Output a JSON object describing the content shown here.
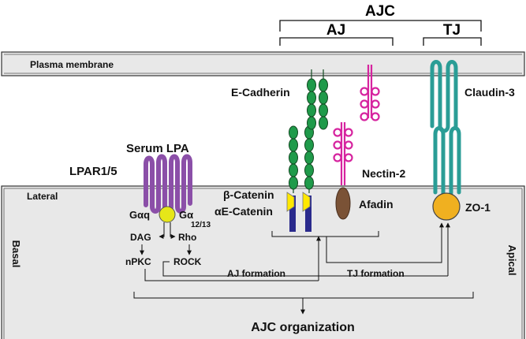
{
  "headers": {
    "ajc": "AJC",
    "aj": "AJ",
    "tj": "TJ"
  },
  "compartments": {
    "plasma_membrane": "Plasma membrane",
    "lateral": "Lateral",
    "basal": "Basal",
    "apical": "Apical"
  },
  "molecules": {
    "serum_lpa": "Serum LPA",
    "lpar": "LPAR1/5",
    "g_alpha_q": "Gαq",
    "g_alpha_12": "Gα",
    "g_alpha_12_sub": "12/13",
    "e_cadherin": "E-Cadherin",
    "nectin": "Nectin-2",
    "claudin": "Claudin-3",
    "beta_catenin": "β-Catenin",
    "alpha_catenin": "αE-Catenin",
    "afadin": "Afadin",
    "zo1": "ZO-1"
  },
  "signaling": {
    "dag": "DAG",
    "rho": "Rho",
    "npkc": "nPKC",
    "rock": "ROCK"
  },
  "processes": {
    "aj_formation": "AJ formation",
    "tj_formation": "TJ formation",
    "ajc_organization": "AJC organization"
  },
  "colors": {
    "lpar": "#8b4fa8",
    "g_protein": "#e6e619",
    "cadherin": "#1f9a4a",
    "nectin": "#d6249f",
    "claudin": "#2a9d96",
    "beta_catenin": "#ffe800",
    "alpha_catenin": "#2a2a8c",
    "afadin": "#7a5236",
    "zo1": "#f0b020",
    "membrane_fill": "#e8e8e8"
  }
}
